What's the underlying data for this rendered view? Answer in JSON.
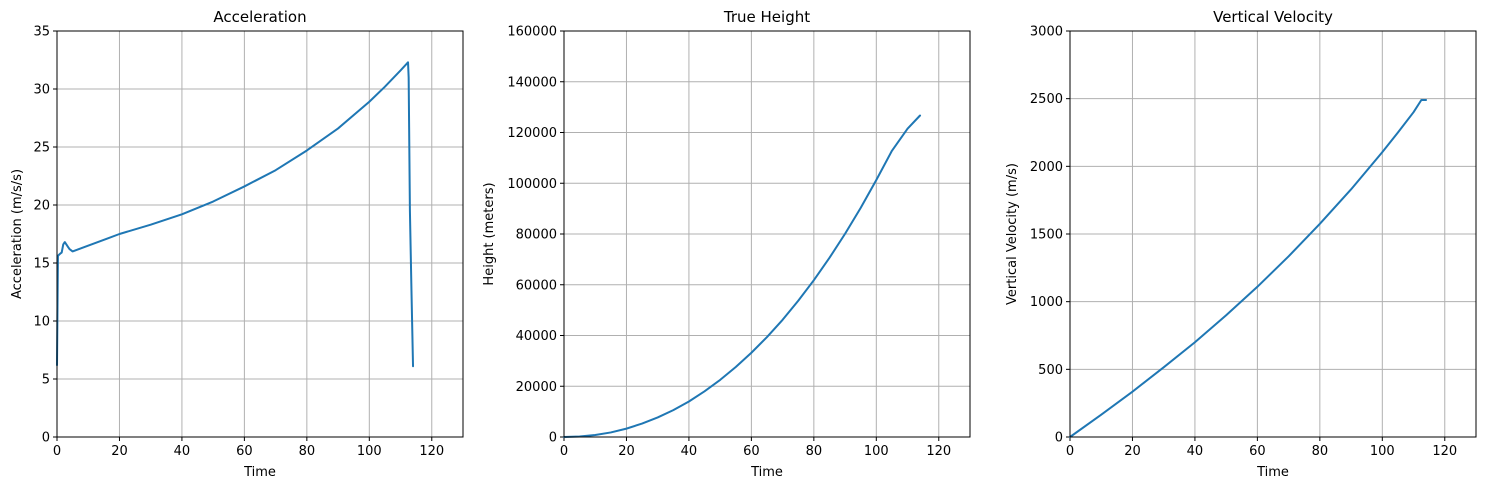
{
  "colors": {
    "series": "#1f77b4",
    "grid": "#b0b0b0",
    "axis": "#000000"
  },
  "chart_data": [
    {
      "type": "line",
      "title": "Acceleration",
      "xlabel": "Time",
      "ylabel": "Acceleration (m/s/s)",
      "xlim": [
        0,
        130
      ],
      "ylim": [
        0,
        35
      ],
      "xticks": [
        0,
        20,
        40,
        60,
        80,
        100,
        120
      ],
      "yticks": [
        0,
        5,
        10,
        15,
        20,
        25,
        30,
        35
      ],
      "grid": true,
      "series": [
        {
          "x": [
            0,
            0.3,
            0.6,
            1,
            1.5,
            2,
            2.5,
            3,
            3.5,
            4,
            5,
            8,
            12,
            16,
            20,
            30,
            40,
            50,
            60,
            70,
            80,
            90,
            100,
            105,
            110,
            112.4,
            112.6,
            113,
            113.5,
            114
          ],
          "y": [
            6.2,
            15.6,
            15.7,
            15.8,
            15.9,
            16.6,
            16.8,
            16.6,
            16.4,
            16.2,
            16.0,
            16.3,
            16.7,
            17.1,
            17.5,
            18.3,
            19.2,
            20.3,
            21.6,
            23.0,
            24.7,
            26.6,
            28.9,
            30.2,
            31.6,
            32.3,
            31.0,
            19.5,
            12.6,
            6.1
          ]
        }
      ]
    },
    {
      "type": "line",
      "title": "True Height",
      "xlabel": "Time",
      "ylabel": "Height (meters)",
      "xlim": [
        0,
        130
      ],
      "ylim": [
        0,
        160000
      ],
      "xticks": [
        0,
        20,
        40,
        60,
        80,
        100,
        120
      ],
      "yticks": [
        0,
        20000,
        40000,
        60000,
        80000,
        100000,
        120000,
        140000,
        160000
      ],
      "grid": true,
      "series": [
        {
          "x": [
            0,
            5,
            10,
            15,
            20,
            25,
            30,
            35,
            40,
            45,
            50,
            55,
            60,
            65,
            70,
            75,
            80,
            85,
            90,
            95,
            100,
            105,
            110,
            114
          ],
          "y": [
            0,
            200,
            800,
            1800,
            3300,
            5300,
            7700,
            10600,
            14000,
            18000,
            22500,
            27600,
            33200,
            39400,
            46200,
            53700,
            61800,
            70600,
            80100,
            90300,
            101300,
            112800,
            121500,
            126700
          ]
        }
      ]
    },
    {
      "type": "line",
      "title": "Vertical Velocity",
      "xlabel": "Time",
      "ylabel": "Vertical Velocity (m/s)",
      "xlim": [
        0,
        130
      ],
      "ylim": [
        0,
        3000
      ],
      "xticks": [
        0,
        20,
        40,
        60,
        80,
        100,
        120
      ],
      "yticks": [
        0,
        500,
        1000,
        1500,
        2000,
        2500,
        3000
      ],
      "grid": true,
      "series": [
        {
          "x": [
            0,
            10,
            20,
            30,
            40,
            50,
            60,
            70,
            80,
            90,
            100,
            105,
            110,
            112.5,
            114
          ],
          "y": [
            0,
            165,
            335,
            515,
            700,
            900,
            1110,
            1335,
            1575,
            1830,
            2105,
            2250,
            2400,
            2490,
            2490
          ]
        }
      ]
    }
  ]
}
